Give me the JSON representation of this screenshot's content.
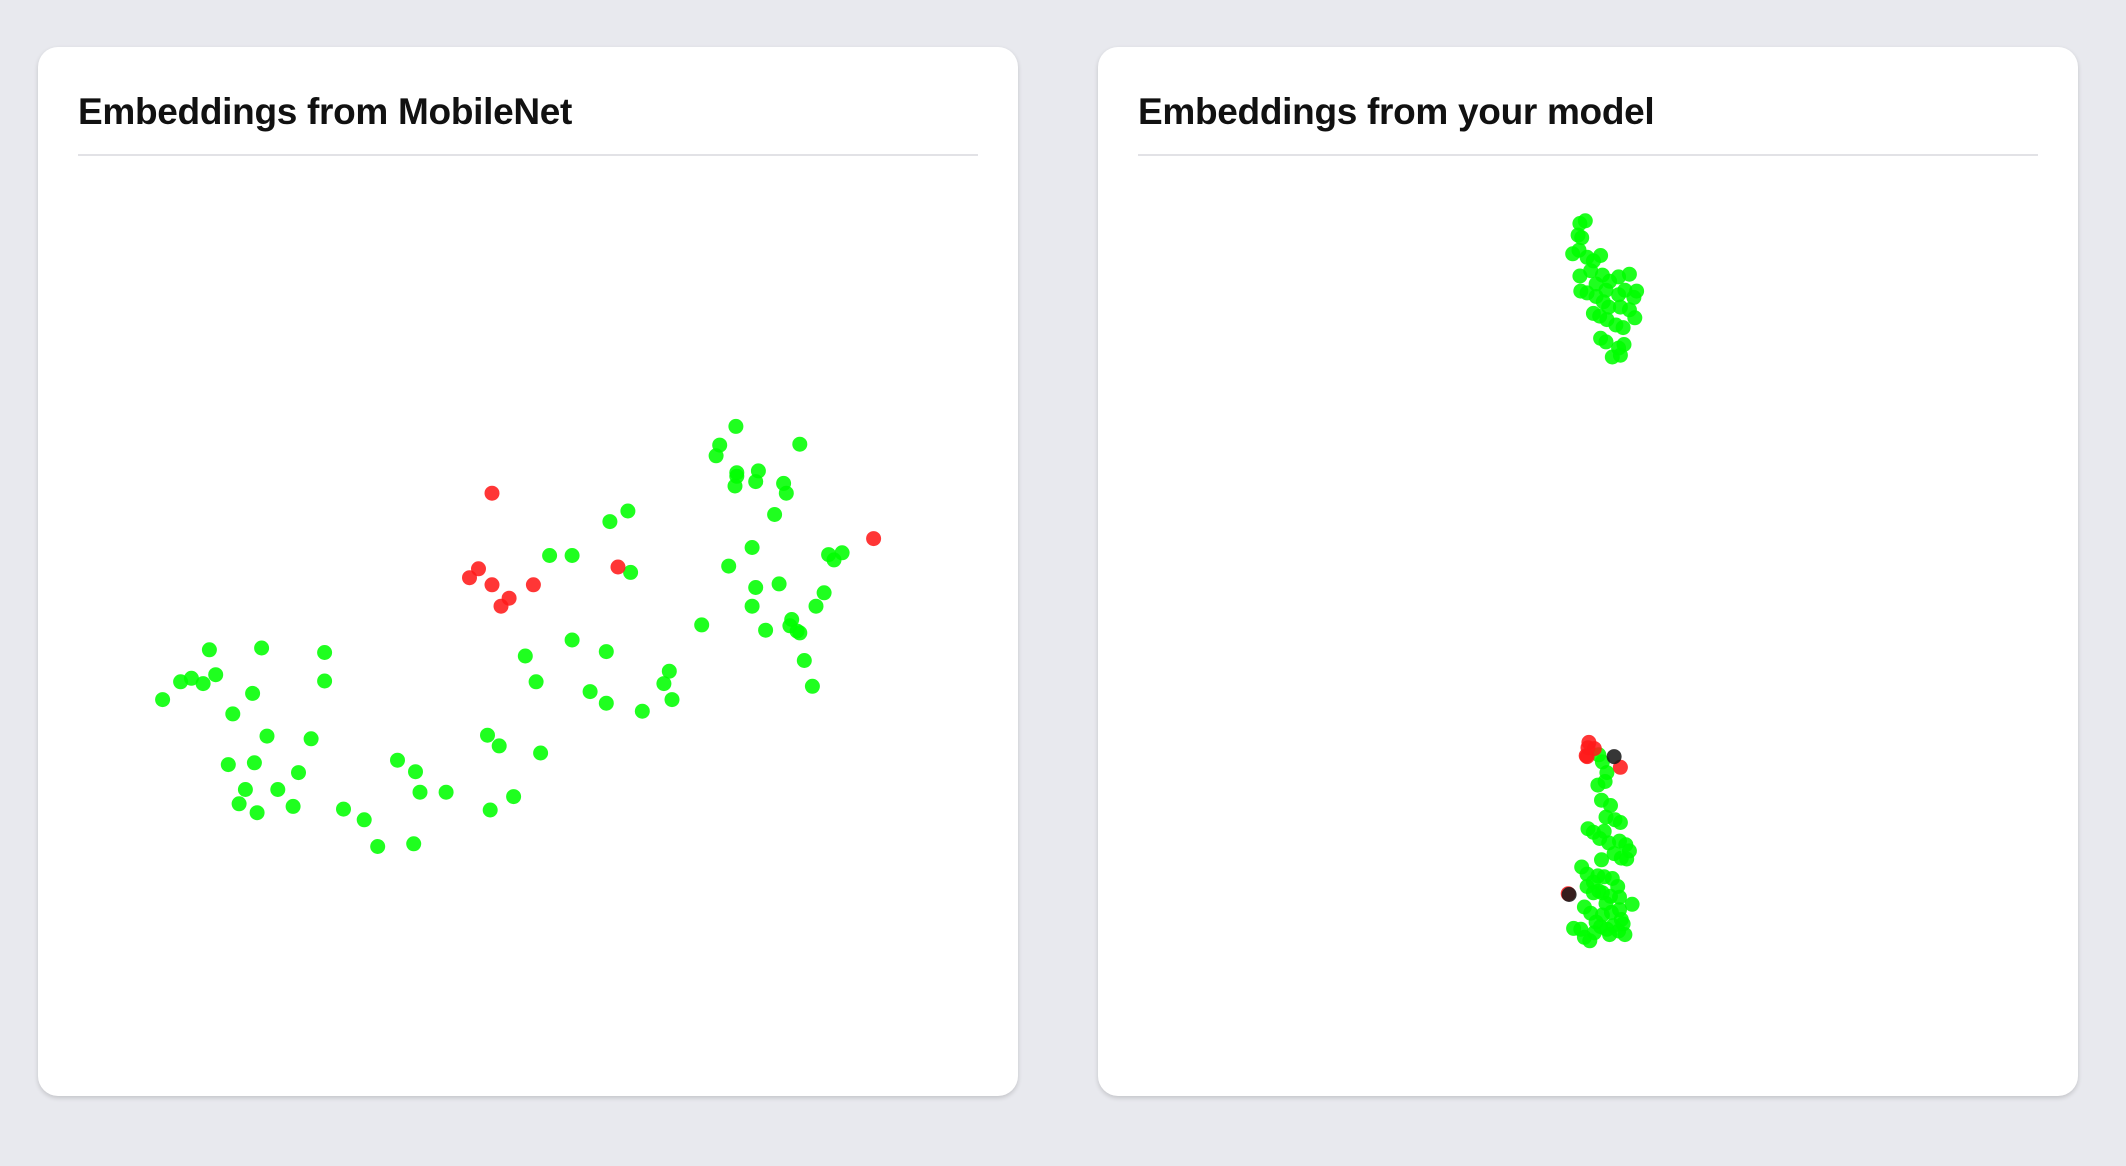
{
  "colors": {
    "page_bg": "#e8e9ee",
    "card_bg": "#ffffff",
    "positive": "#00ff00",
    "negative": "#ff1a1a",
    "mixed": "#1a1a1a"
  },
  "chart_data": [
    {
      "type": "scatter",
      "title": "Embeddings from MobileNet",
      "xlim": [
        0,
        100
      ],
      "ylim": [
        0,
        100
      ],
      "grid": false,
      "series": [
        {
          "color": "#00ff00",
          "points": [
            [
              9.4,
              42.4
            ],
            [
              11.4,
              44.4
            ],
            [
              12.6,
              44.8
            ],
            [
              14.6,
              48.0
            ],
            [
              13.9,
              44.2
            ],
            [
              15.3,
              45.2
            ],
            [
              20.4,
              48.2
            ],
            [
              27.4,
              47.7
            ],
            [
              27.4,
              44.5
            ],
            [
              19.4,
              43.1
            ],
            [
              17.2,
              40.8
            ],
            [
              21.0,
              38.3
            ],
            [
              25.9,
              38.0
            ],
            [
              16.7,
              35.1
            ],
            [
              19.6,
              35.3
            ],
            [
              22.2,
              32.3
            ],
            [
              24.5,
              34.2
            ],
            [
              18.6,
              32.3
            ],
            [
              17.9,
              30.7
            ],
            [
              19.9,
              29.7
            ],
            [
              23.9,
              30.4
            ],
            [
              29.5,
              30.1
            ],
            [
              31.8,
              28.9
            ],
            [
              33.3,
              25.9
            ],
            [
              37.3,
              26.2
            ],
            [
              35.5,
              35.6
            ],
            [
              37.5,
              34.3
            ],
            [
              38.0,
              32.0
            ],
            [
              40.9,
              32.0
            ],
            [
              46.8,
              37.2
            ],
            [
              51.4,
              36.4
            ],
            [
              45.8,
              30.0
            ],
            [
              48.4,
              31.5
            ],
            [
              45.5,
              38.4
            ],
            [
              50.9,
              44.4
            ],
            [
              49.7,
              47.3
            ],
            [
              52.4,
              58.6
            ],
            [
              54.9,
              49.1
            ],
            [
              54.9,
              58.6
            ],
            [
              56.9,
              43.3
            ],
            [
              58.7,
              47.8
            ],
            [
              61.1,
              63.6
            ],
            [
              59.1,
              62.4
            ],
            [
              61.4,
              56.7
            ],
            [
              58.7,
              42.0
            ],
            [
              62.7,
              41.1
            ],
            [
              65.7,
              45.6
            ],
            [
              65.1,
              44.2
            ],
            [
              66.0,
              42.4
            ],
            [
              69.3,
              50.8
            ],
            [
              70.9,
              69.8
            ],
            [
              71.3,
              71.0
            ],
            [
              73.2,
              67.5
            ],
            [
              75.3,
              66.9
            ],
            [
              74.9,
              59.5
            ],
            [
              75.3,
              55.0
            ],
            [
              74.9,
              52.9
            ],
            [
              73.2,
              67.9
            ],
            [
              77.4,
              63.2
            ],
            [
              73.1,
              73.1
            ],
            [
              78.4,
              66.7
            ],
            [
              77.9,
              55.4
            ],
            [
              75.6,
              68.1
            ],
            [
              78.7,
              65.6
            ],
            [
              73.0,
              66.4
            ],
            [
              79.3,
              51.4
            ],
            [
              76.4,
              50.2
            ],
            [
              82.0,
              52.9
            ],
            [
              80.2,
              49.9
            ],
            [
              82.9,
              54.4
            ],
            [
              84.0,
              58.1
            ],
            [
              84.9,
              58.9
            ],
            [
              83.4,
              58.7
            ],
            [
              72.3,
              57.4
            ],
            [
              79.1,
              50.7
            ],
            [
              81.6,
              43.9
            ],
            [
              80.7,
              46.8
            ],
            [
              79.9,
              50.1
            ],
            [
              80.2,
              71.1
            ]
          ]
        },
        {
          "color": "#ff1a1a",
          "points": [
            [
              46.0,
              65.6
            ],
            [
              44.5,
              57.1
            ],
            [
              46.0,
              55.3
            ],
            [
              50.6,
              55.3
            ],
            [
              43.5,
              56.1
            ],
            [
              88.4,
              60.5
            ],
            [
              47.0,
              52.9
            ],
            [
              47.9,
              53.8
            ],
            [
              60.0,
              57.3
            ]
          ]
        }
      ]
    },
    {
      "type": "scatter",
      "title": "Embeddings from your model",
      "xlim": [
        0,
        100
      ],
      "ylim": [
        0,
        100
      ],
      "grid": false,
      "series": [
        {
          "color": "#00ff00",
          "points": [
            [
              49.1,
              95.9
            ],
            [
              49.7,
              96.2
            ],
            [
              48.9,
              94.6
            ],
            [
              49.3,
              94.3
            ],
            [
              48.3,
              92.5
            ],
            [
              49.0,
              92.9
            ],
            [
              49.9,
              92.1
            ],
            [
              50.6,
              91.7
            ],
            [
              51.4,
              92.3
            ],
            [
              50.3,
              90.6
            ],
            [
              51.6,
              90.1
            ],
            [
              52.4,
              89.4
            ],
            [
              53.4,
              89.9
            ],
            [
              54.6,
              90.2
            ],
            [
              49.1,
              90.0
            ],
            [
              50.9,
              89.1
            ],
            [
              52.0,
              88.4
            ],
            [
              53.4,
              87.9
            ],
            [
              54.1,
              88.4
            ],
            [
              55.4,
              88.3
            ],
            [
              49.2,
              88.3
            ],
            [
              49.9,
              88.1
            ],
            [
              50.9,
              87.7
            ],
            [
              51.7,
              87.1
            ],
            [
              52.3,
              86.5
            ],
            [
              53.6,
              86.5
            ],
            [
              55.1,
              87.6
            ],
            [
              54.6,
              86.2
            ],
            [
              50.6,
              85.8
            ],
            [
              51.3,
              85.5
            ],
            [
              52.1,
              85.1
            ],
            [
              53.1,
              84.5
            ],
            [
              55.2,
              85.3
            ],
            [
              53.9,
              84.2
            ],
            [
              51.4,
              83.0
            ],
            [
              52.0,
              82.6
            ],
            [
              53.4,
              81.9
            ],
            [
              54.0,
              82.3
            ],
            [
              53.6,
              81.1
            ],
            [
              52.7,
              80.9
            ],
            [
              51.2,
              36.2
            ],
            [
              51.6,
              35.4
            ],
            [
              52.1,
              34.2
            ],
            [
              51.9,
              33.2
            ],
            [
              51.1,
              32.8
            ],
            [
              51.5,
              31.1
            ],
            [
              52.5,
              30.5
            ],
            [
              52.0,
              29.2
            ],
            [
              53.0,
              28.9
            ],
            [
              53.6,
              28.6
            ],
            [
              51.8,
              27.6
            ],
            [
              50.0,
              27.9
            ],
            [
              50.6,
              27.5
            ],
            [
              51.3,
              26.8
            ],
            [
              52.3,
              26.3
            ],
            [
              53.5,
              26.5
            ],
            [
              54.2,
              26.1
            ],
            [
              54.6,
              25.4
            ],
            [
              52.9,
              25.1
            ],
            [
              53.7,
              24.6
            ],
            [
              54.3,
              24.5
            ],
            [
              51.5,
              24.4
            ],
            [
              49.3,
              23.6
            ],
            [
              49.9,
              22.8
            ],
            [
              51.1,
              22.6
            ],
            [
              51.8,
              22.5
            ],
            [
              52.7,
              22.3
            ],
            [
              53.3,
              21.4
            ],
            [
              50.6,
              21.9
            ],
            [
              51.2,
              20.9
            ],
            [
              52.5,
              20.3
            ],
            [
              53.5,
              20.2
            ],
            [
              49.9,
              21.4
            ],
            [
              50.6,
              20.7
            ],
            [
              51.6,
              20.7
            ],
            [
              52.0,
              19.5
            ],
            [
              53.5,
              18.8
            ],
            [
              54.9,
              19.4
            ],
            [
              49.6,
              19.1
            ],
            [
              50.3,
              18.4
            ],
            [
              51.6,
              18.2
            ],
            [
              52.6,
              18.5
            ],
            [
              53.7,
              17.7
            ],
            [
              50.9,
              17.4
            ],
            [
              51.4,
              16.9
            ],
            [
              52.1,
              16.6
            ],
            [
              52.8,
              17.0
            ],
            [
              53.9,
              17.2
            ],
            [
              49.2,
              16.6
            ],
            [
              50.7,
              16.2
            ],
            [
              52.4,
              16.0
            ],
            [
              53.4,
              16.4
            ],
            [
              54.1,
              16.0
            ],
            [
              48.4,
              16.7
            ],
            [
              49.6,
              15.7
            ],
            [
              50.2,
              15.3
            ]
          ]
        },
        {
          "color": "#ff1a1a",
          "points": [
            [
              50.1,
              37.6
            ],
            [
              50.7,
              36.9
            ],
            [
              49.8,
              36.1
            ],
            [
              53.6,
              34.8
            ],
            [
              47.8,
              20.6
            ],
            [
              50.0,
              37.0
            ],
            [
              49.9,
              36.0
            ]
          ]
        },
        {
          "color": "#1a1a1a",
          "points": [
            [
              52.9,
              36.0
            ],
            [
              47.9,
              20.5
            ]
          ]
        }
      ]
    }
  ]
}
